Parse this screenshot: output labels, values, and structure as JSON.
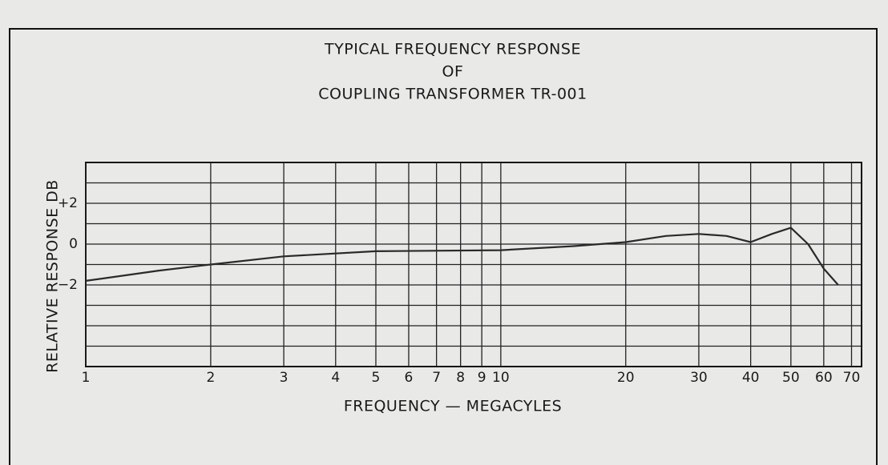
{
  "chart_data": {
    "type": "line",
    "title": [
      "TYPICAL FREQUENCY RESPONSE",
      "OF",
      "COUPLING TRANSFORMER TR-001"
    ],
    "x_label": "FREQUENCY — MEGACYLES",
    "y_label": "RELATIVE RESPONSE DB",
    "x_log": true,
    "grid": true,
    "xlim": [
      1,
      74
    ],
    "xticks": [
      1,
      2,
      3,
      4,
      5,
      6,
      7,
      8,
      9,
      10,
      20,
      30,
      40,
      50,
      60,
      70
    ],
    "ylim": [
      -6,
      4
    ],
    "yticks": [
      {
        "value": 2,
        "label": "+2"
      },
      0,
      {
        "value": -2,
        "label": "−2"
      }
    ],
    "yminor": [
      -5,
      -4,
      -3,
      -1,
      1,
      3
    ],
    "series": [
      {
        "color": "#2a2a2a",
        "x": [
          1,
          1.5,
          2,
          3,
          5,
          10,
          15,
          20,
          25,
          30,
          35,
          40,
          45,
          50,
          55,
          60,
          65
        ],
        "values": [
          -1.8,
          -1.3,
          -1.0,
          -0.6,
          -0.35,
          -0.3,
          -0.1,
          0.1,
          0.4,
          0.5,
          0.4,
          0.1,
          0.5,
          0.8,
          0,
          -1.2,
          -2.0
        ]
      }
    ]
  }
}
